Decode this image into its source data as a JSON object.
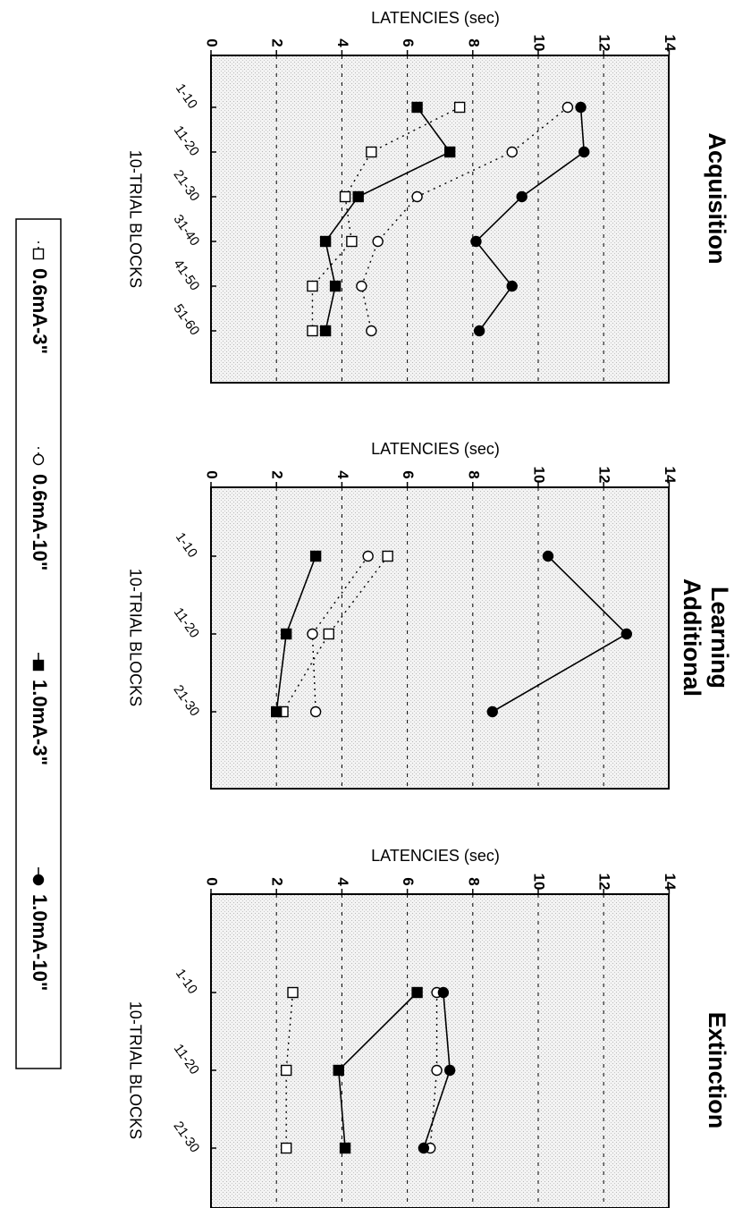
{
  "legend": {
    "items": [
      {
        "label": "0.6mA-3\"",
        "marker": "square-open",
        "line": "dotted"
      },
      {
        "label": "0.6mA-10\"",
        "marker": "circle-open",
        "line": "dotted"
      },
      {
        "label": "1.0mA-3\"",
        "marker": "square-filled",
        "line": "solid"
      },
      {
        "label": "1.0mA-10\"",
        "marker": "circle-filled",
        "line": "solid"
      }
    ]
  },
  "chart_data": [
    {
      "type": "line",
      "title": "Acquisition",
      "xlabel": "10-TRIAL BLOCKS",
      "ylabel": "LATENCIES (sec)",
      "categories": [
        "1-10",
        "11-20",
        "21-30",
        "31-40",
        "41-50",
        "51-60"
      ],
      "ylim": [
        0,
        14
      ],
      "yticks": [
        0,
        2,
        4,
        6,
        8,
        10,
        12,
        14
      ],
      "grid": true,
      "series": [
        {
          "name": "0.6mA-3\"",
          "values": [
            7.6,
            4.9,
            4.1,
            4.3,
            3.1,
            3.1
          ]
        },
        {
          "name": "0.6mA-10\"",
          "values": [
            10.9,
            9.2,
            6.3,
            5.1,
            4.6,
            4.9
          ]
        },
        {
          "name": "1.0mA-3\"",
          "values": [
            6.3,
            7.3,
            4.5,
            3.5,
            3.8,
            3.5
          ]
        },
        {
          "name": "1.0mA-10\"",
          "values": [
            11.3,
            11.4,
            9.5,
            8.1,
            9.2,
            8.2
          ]
        }
      ]
    },
    {
      "type": "line",
      "title": "Additional Learning",
      "xlabel": "10-TRIAL BLOCKS",
      "ylabel": "LATENCIES (sec)",
      "categories": [
        "1-10",
        "11-20",
        "21-30"
      ],
      "ylim": [
        0,
        14
      ],
      "yticks": [
        0,
        2,
        4,
        6,
        8,
        10,
        12,
        14
      ],
      "grid": true,
      "series": [
        {
          "name": "0.6mA-3\"",
          "values": [
            5.4,
            3.6,
            2.2
          ]
        },
        {
          "name": "0.6mA-10\"",
          "values": [
            4.8,
            3.1,
            3.2
          ]
        },
        {
          "name": "1.0mA-3\"",
          "values": [
            3.2,
            2.3,
            2.0
          ]
        },
        {
          "name": "1.0mA-10\"",
          "values": [
            10.3,
            12.7,
            8.6
          ]
        }
      ]
    },
    {
      "type": "line",
      "title": "Extinction",
      "xlabel": "10-TRIAL BLOCKS",
      "ylabel": "LATENCIES (sec)",
      "categories": [
        "1-10",
        "11-20",
        "21-30"
      ],
      "ylim": [
        0,
        14
      ],
      "yticks": [
        0,
        2,
        4,
        6,
        8,
        10,
        12,
        14
      ],
      "grid": true,
      "series": [
        {
          "name": "0.6mA-3\"",
          "values": [
            2.5,
            2.3,
            2.3
          ]
        },
        {
          "name": "0.6mA-10\"",
          "values": [
            6.9,
            6.9,
            6.7
          ]
        },
        {
          "name": "1.0mA-3\"",
          "values": [
            6.3,
            3.9,
            4.1
          ]
        },
        {
          "name": "1.0mA-10\"",
          "values": [
            7.1,
            7.3,
            6.5
          ]
        }
      ]
    }
  ]
}
